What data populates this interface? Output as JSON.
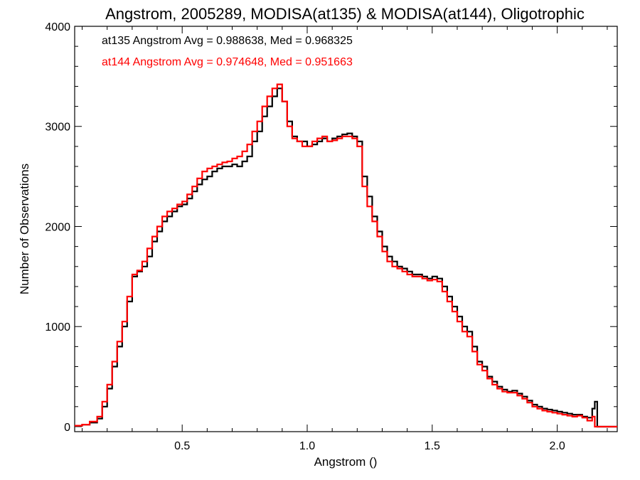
{
  "chart_data": {
    "type": "line",
    "step": true,
    "title": "Angstrom, 2005289, MODISA(at135) & MODISA(at144), Oligotrophic",
    "xlabel": "Angstrom ()",
    "ylabel": "Number of Observations",
    "xlim": [
      0.07,
      2.24
    ],
    "ylim": [
      -50,
      4000
    ],
    "xticks": [
      0.5,
      1.0,
      1.5,
      2.0
    ],
    "xtick_labels": [
      "0.5",
      "1.0",
      "1.5",
      "2.0"
    ],
    "yticks": [
      0,
      1000,
      2000,
      3000,
      4000
    ],
    "ytick_labels": [
      "0",
      "1000",
      "2000",
      "3000",
      "4000"
    ],
    "grid": false,
    "annotations": [
      {
        "text": "at135 Angstrom Avg = 0.988638, Med = 0.968325",
        "color": "#000000"
      },
      {
        "text": "at144 Angstrom Avg = 0.974648, Med = 0.951663",
        "color": "#ff0000"
      }
    ],
    "series": [
      {
        "color": "#000000",
        "x": [
          0.07,
          0.1,
          0.13,
          0.16,
          0.18,
          0.2,
          0.22,
          0.24,
          0.26,
          0.28,
          0.3,
          0.32,
          0.34,
          0.36,
          0.38,
          0.4,
          0.42,
          0.44,
          0.46,
          0.48,
          0.5,
          0.52,
          0.54,
          0.56,
          0.58,
          0.6,
          0.62,
          0.64,
          0.66,
          0.68,
          0.7,
          0.72,
          0.74,
          0.76,
          0.78,
          0.8,
          0.82,
          0.84,
          0.86,
          0.88,
          0.9,
          0.92,
          0.94,
          0.96,
          0.98,
          1.0,
          1.02,
          1.04,
          1.06,
          1.08,
          1.1,
          1.12,
          1.14,
          1.16,
          1.18,
          1.2,
          1.22,
          1.24,
          1.26,
          1.28,
          1.3,
          1.32,
          1.34,
          1.36,
          1.38,
          1.4,
          1.42,
          1.44,
          1.46,
          1.48,
          1.5,
          1.52,
          1.54,
          1.56,
          1.58,
          1.6,
          1.62,
          1.64,
          1.66,
          1.68,
          1.7,
          1.72,
          1.74,
          1.76,
          1.78,
          1.8,
          1.82,
          1.84,
          1.86,
          1.88,
          1.9,
          1.92,
          1.94,
          1.96,
          1.98,
          2.0,
          2.02,
          2.04,
          2.06,
          2.08,
          2.1,
          2.12,
          2.14,
          2.15,
          2.16,
          2.24
        ],
        "y": [
          10,
          20,
          40,
          80,
          200,
          380,
          600,
          800,
          1000,
          1250,
          1500,
          1550,
          1600,
          1700,
          1850,
          1950,
          2050,
          2100,
          2150,
          2200,
          2220,
          2280,
          2350,
          2420,
          2470,
          2500,
          2550,
          2580,
          2600,
          2600,
          2620,
          2600,
          2650,
          2700,
          2850,
          2950,
          3100,
          3200,
          3300,
          3380,
          3250,
          3050,
          2900,
          2850,
          2850,
          2800,
          2820,
          2850,
          2880,
          2850,
          2880,
          2900,
          2920,
          2930,
          2900,
          2850,
          2500,
          2300,
          2100,
          1950,
          1800,
          1700,
          1650,
          1600,
          1580,
          1550,
          1520,
          1520,
          1500,
          1480,
          1500,
          1480,
          1400,
          1300,
          1200,
          1100,
          1000,
          950,
          800,
          650,
          600,
          500,
          450,
          400,
          370,
          350,
          360,
          330,
          300,
          260,
          220,
          200,
          180,
          170,
          160,
          150,
          140,
          130,
          120,
          120,
          100,
          90,
          180,
          250,
          0,
          0
        ]
      },
      {
        "color": "#ff0000",
        "x": [
          0.07,
          0.1,
          0.13,
          0.16,
          0.18,
          0.2,
          0.22,
          0.24,
          0.26,
          0.28,
          0.3,
          0.32,
          0.34,
          0.36,
          0.38,
          0.4,
          0.42,
          0.44,
          0.46,
          0.48,
          0.5,
          0.52,
          0.54,
          0.56,
          0.58,
          0.6,
          0.62,
          0.64,
          0.66,
          0.68,
          0.7,
          0.72,
          0.74,
          0.76,
          0.78,
          0.8,
          0.82,
          0.84,
          0.86,
          0.88,
          0.9,
          0.92,
          0.94,
          0.96,
          0.98,
          1.0,
          1.02,
          1.04,
          1.06,
          1.08,
          1.1,
          1.12,
          1.14,
          1.16,
          1.18,
          1.2,
          1.22,
          1.24,
          1.26,
          1.28,
          1.3,
          1.32,
          1.34,
          1.36,
          1.38,
          1.4,
          1.42,
          1.44,
          1.46,
          1.48,
          1.5,
          1.52,
          1.54,
          1.56,
          1.58,
          1.6,
          1.62,
          1.64,
          1.66,
          1.68,
          1.7,
          1.72,
          1.74,
          1.76,
          1.78,
          1.8,
          1.82,
          1.84,
          1.86,
          1.88,
          1.9,
          1.92,
          1.94,
          1.96,
          1.98,
          2.0,
          2.02,
          2.04,
          2.06,
          2.08,
          2.1,
          2.12,
          2.14,
          2.15,
          2.16,
          2.24
        ],
        "y": [
          10,
          20,
          50,
          100,
          250,
          420,
          650,
          850,
          1050,
          1300,
          1520,
          1560,
          1650,
          1780,
          1900,
          2000,
          2100,
          2150,
          2180,
          2220,
          2250,
          2320,
          2400,
          2480,
          2550,
          2580,
          2600,
          2620,
          2640,
          2650,
          2680,
          2700,
          2750,
          2820,
          2950,
          3050,
          3200,
          3300,
          3380,
          3420,
          3250,
          3000,
          2880,
          2850,
          2800,
          2800,
          2850,
          2880,
          2900,
          2850,
          2860,
          2880,
          2900,
          2900,
          2880,
          2800,
          2400,
          2200,
          2050,
          1900,
          1750,
          1650,
          1600,
          1580,
          1550,
          1520,
          1500,
          1500,
          1480,
          1460,
          1470,
          1450,
          1350,
          1250,
          1150,
          1050,
          950,
          900,
          750,
          620,
          560,
          480,
          420,
          380,
          350,
          340,
          340,
          310,
          280,
          240,
          200,
          180,
          160,
          150,
          140,
          130,
          120,
          110,
          100,
          110,
          90,
          60,
          100,
          0,
          0,
          0
        ]
      }
    ]
  }
}
